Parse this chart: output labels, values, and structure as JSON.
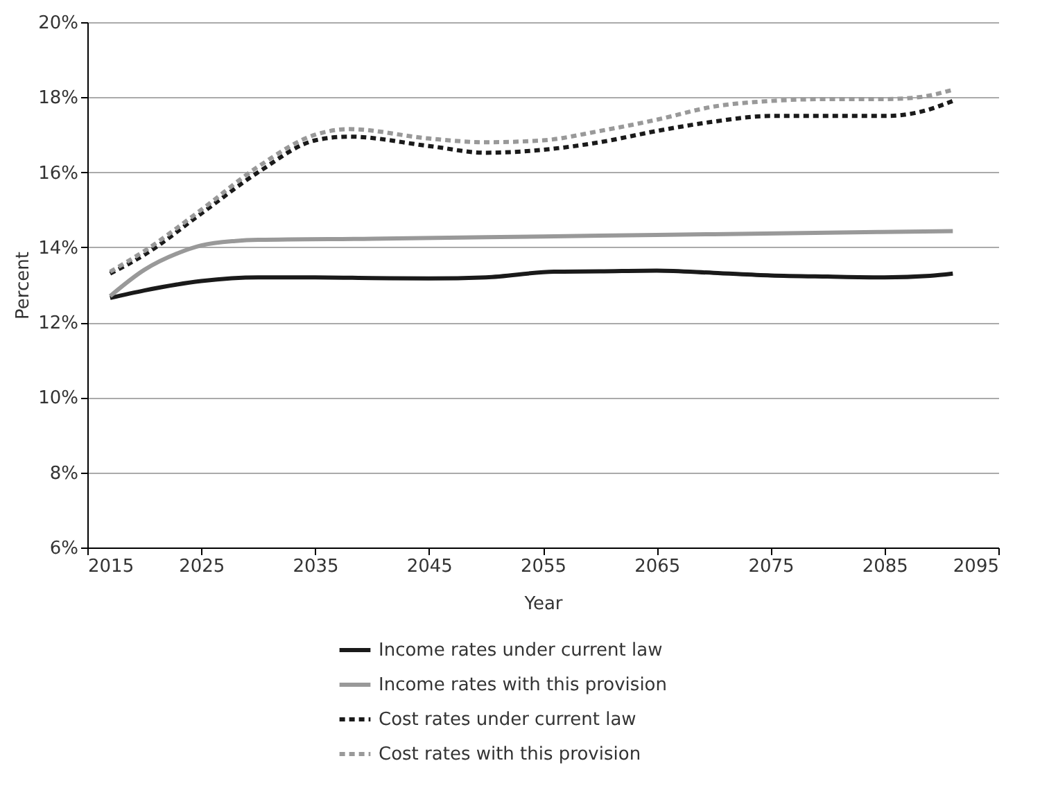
{
  "chart_data": {
    "type": "line",
    "xlabel": "Year",
    "ylabel": "Percent",
    "xlim": [
      2015,
      2095
    ],
    "xticks": [
      2015,
      2025,
      2035,
      2045,
      2055,
      2065,
      2075,
      2085,
      2095
    ],
    "ylim": [
      6,
      20
    ],
    "yticks": [
      {
        "value": 6,
        "label": "6%"
      },
      {
        "value": 8,
        "label": "8%"
      },
      {
        "value": 10,
        "label": "10%"
      },
      {
        "value": 12,
        "label": "12%"
      },
      {
        "value": 14,
        "label": "14%"
      },
      {
        "value": 16,
        "label": "16%"
      },
      {
        "value": 18,
        "label": "18%"
      },
      {
        "value": 20,
        "label": "20%"
      }
    ],
    "grid": "y",
    "legend": "bottom",
    "marker": "none",
    "series": [
      {
        "name": "Income rates under current law",
        "color": "#1a1a1a",
        "line_style": "solid",
        "x": [
          2017,
          2020,
          2025,
          2030,
          2035,
          2040,
          2045,
          2050,
          2056,
          2060,
          2065,
          2070,
          2075,
          2080,
          2085,
          2089,
          2091
        ],
        "values": [
          12.65,
          12.85,
          13.1,
          13.2,
          13.2,
          13.18,
          13.17,
          13.2,
          13.35,
          13.36,
          13.38,
          13.32,
          13.25,
          13.22,
          13.2,
          13.24,
          13.3
        ]
      },
      {
        "name": "Income rates with this provision",
        "color": "#999999",
        "line_style": "solid",
        "x": [
          2017,
          2020,
          2023,
          2025,
          2028,
          2030,
          2040,
          2050,
          2060,
          2070,
          2080,
          2091
        ],
        "values": [
          12.7,
          13.4,
          13.85,
          14.05,
          14.17,
          14.2,
          14.23,
          14.27,
          14.31,
          14.35,
          14.39,
          14.43
        ]
      },
      {
        "name": "Cost rates under current law",
        "color": "#1a1a1a",
        "line_style": "dotted",
        "x": [
          2017,
          2020,
          2025,
          2030,
          2035,
          2038,
          2045,
          2050,
          2055,
          2060,
          2065,
          2070,
          2075,
          2080,
          2085,
          2088,
          2091
        ],
        "values": [
          13.3,
          13.8,
          14.9,
          16.0,
          16.85,
          16.95,
          16.7,
          16.52,
          16.6,
          16.8,
          17.1,
          17.35,
          17.5,
          17.5,
          17.5,
          17.6,
          17.9
        ]
      },
      {
        "name": "Cost rates with this provision",
        "color": "#999999",
        "line_style": "dotted",
        "x": [
          2017,
          2020,
          2025,
          2030,
          2035,
          2038,
          2045,
          2050,
          2055,
          2060,
          2065,
          2070,
          2075,
          2080,
          2085,
          2088,
          2091
        ],
        "values": [
          13.35,
          13.9,
          15.0,
          16.15,
          17.0,
          17.15,
          16.9,
          16.8,
          16.85,
          17.1,
          17.4,
          17.75,
          17.9,
          17.95,
          17.95,
          18.0,
          18.2
        ]
      }
    ]
  }
}
